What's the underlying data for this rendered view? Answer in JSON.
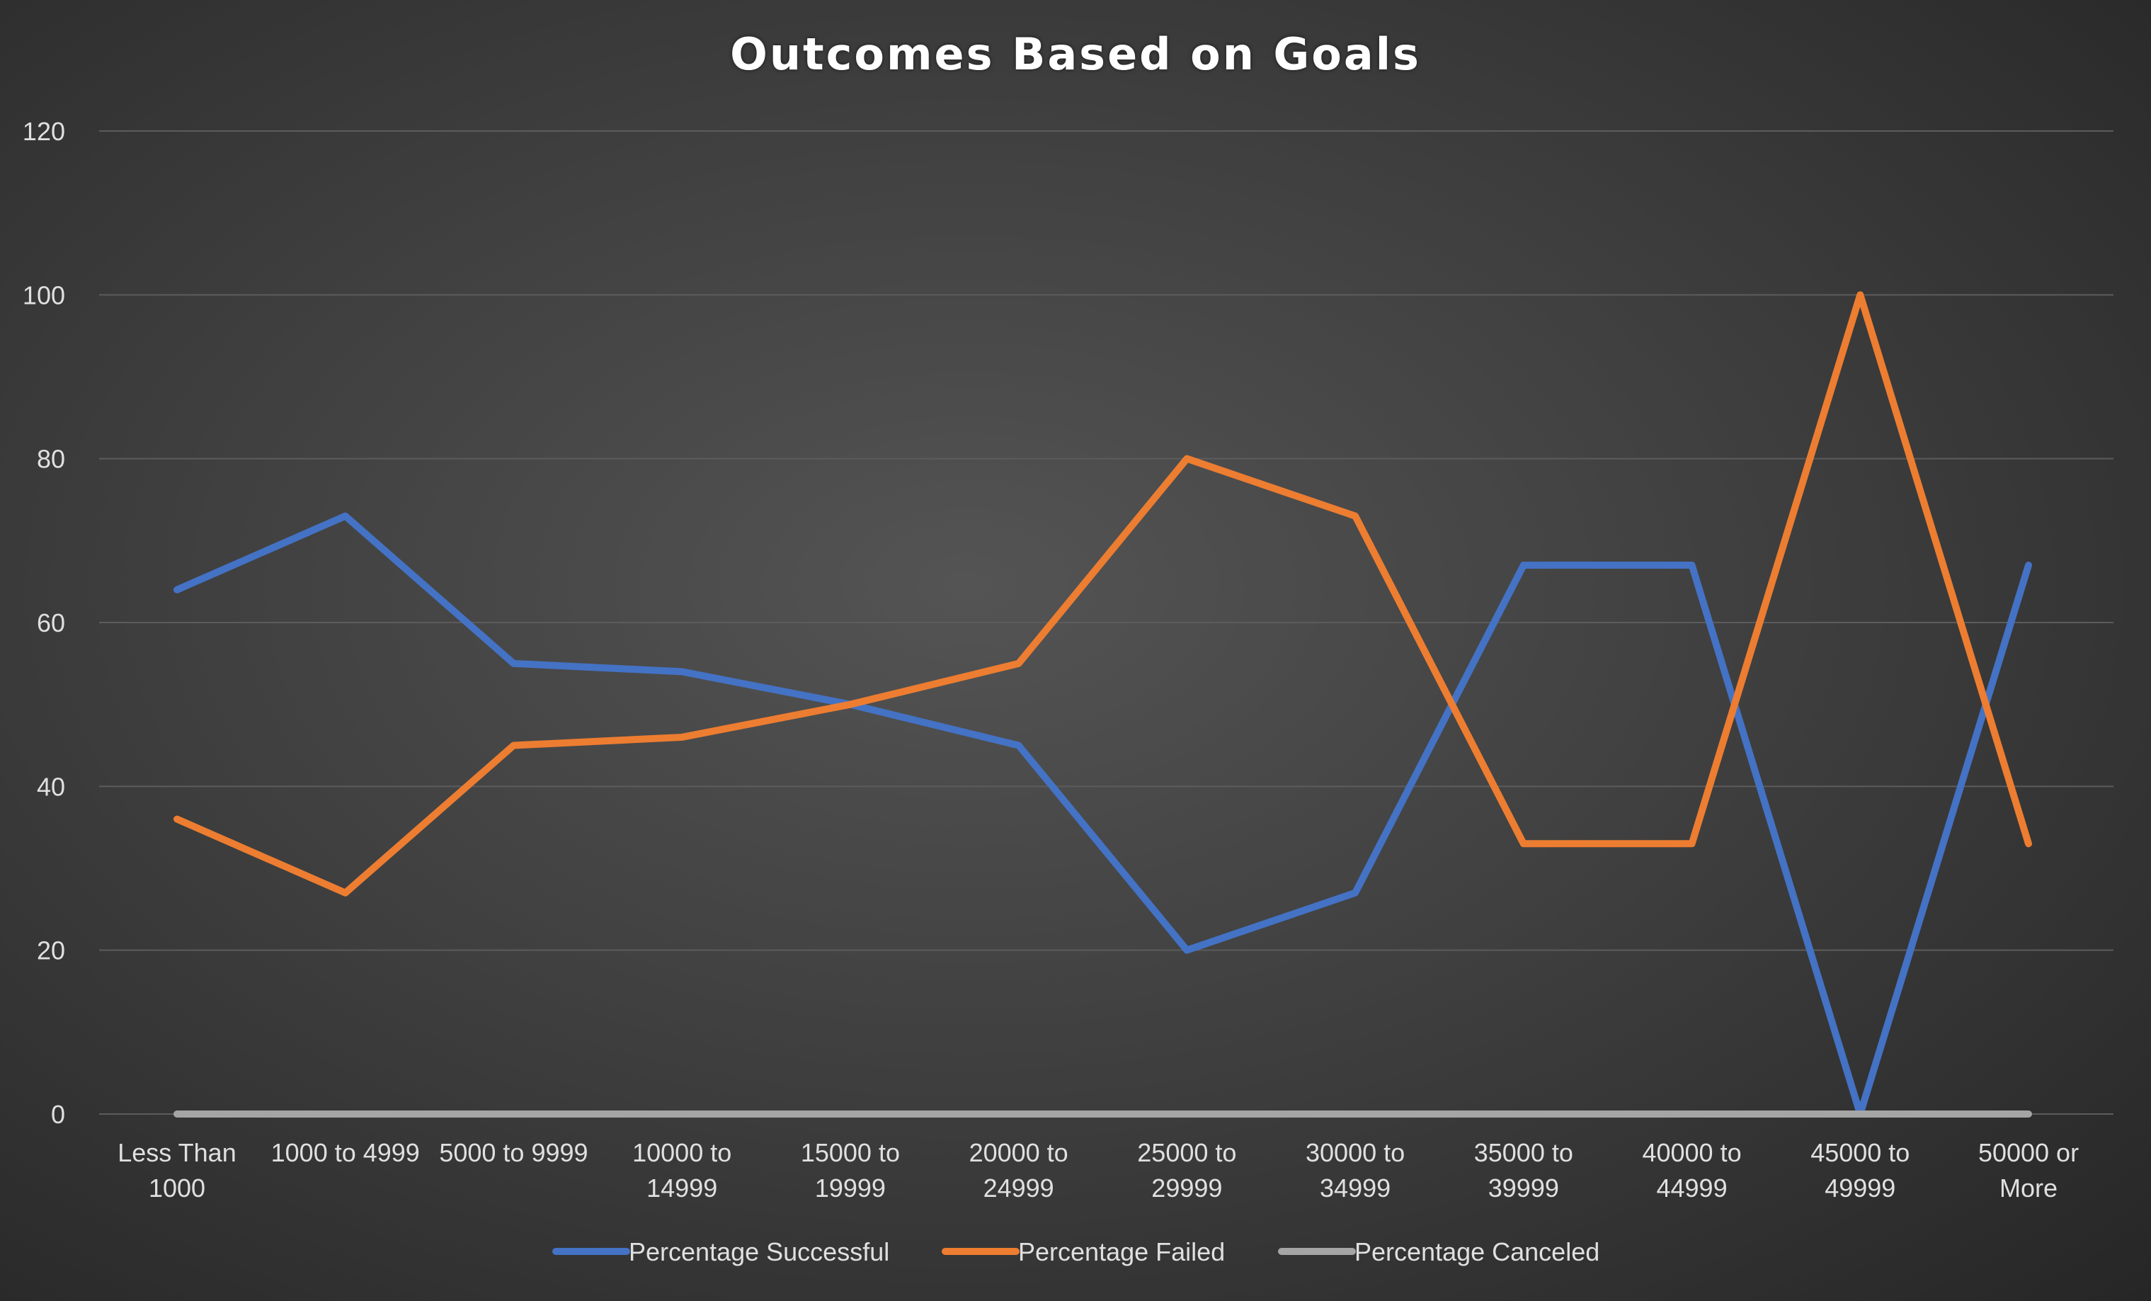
{
  "chart_data": {
    "type": "line",
    "title": "Outcomes Based on Goals",
    "xlabel": "",
    "ylabel": "",
    "categories": [
      [
        "Less Than",
        "1000"
      ],
      [
        "1000 to 4999"
      ],
      [
        "5000 to 9999"
      ],
      [
        "10000 to",
        "14999"
      ],
      [
        "15000 to",
        "19999"
      ],
      [
        "20000 to",
        "24999"
      ],
      [
        "25000 to",
        "29999"
      ],
      [
        "30000 to",
        "34999"
      ],
      [
        "35000 to",
        "39999"
      ],
      [
        "40000 to",
        "44999"
      ],
      [
        "45000 to",
        "49999"
      ],
      [
        "50000 or",
        "More"
      ]
    ],
    "ylim": [
      0,
      120
    ],
    "yticks": [
      0,
      20,
      40,
      60,
      80,
      100,
      120
    ],
    "grid": true,
    "legend_position": "bottom",
    "series": [
      {
        "name": "Percentage Successful",
        "color": "#4472c4",
        "values": [
          64,
          73,
          55,
          54,
          50,
          45,
          20,
          27,
          67,
          67,
          0,
          67
        ]
      },
      {
        "name": "Percentage Failed",
        "color": "#ed7d31",
        "values": [
          36,
          27,
          45,
          46,
          50,
          55,
          80,
          73,
          33,
          33,
          100,
          33
        ]
      },
      {
        "name": "Percentage Canceled",
        "color": "#a5a5a5",
        "values": [
          0,
          0,
          0,
          0,
          0,
          0,
          0,
          0,
          0,
          0,
          0,
          0
        ]
      }
    ],
    "colors": {
      "gridline": "#5c5c5c",
      "text": "#e0e0e0",
      "background": "#404040"
    }
  }
}
